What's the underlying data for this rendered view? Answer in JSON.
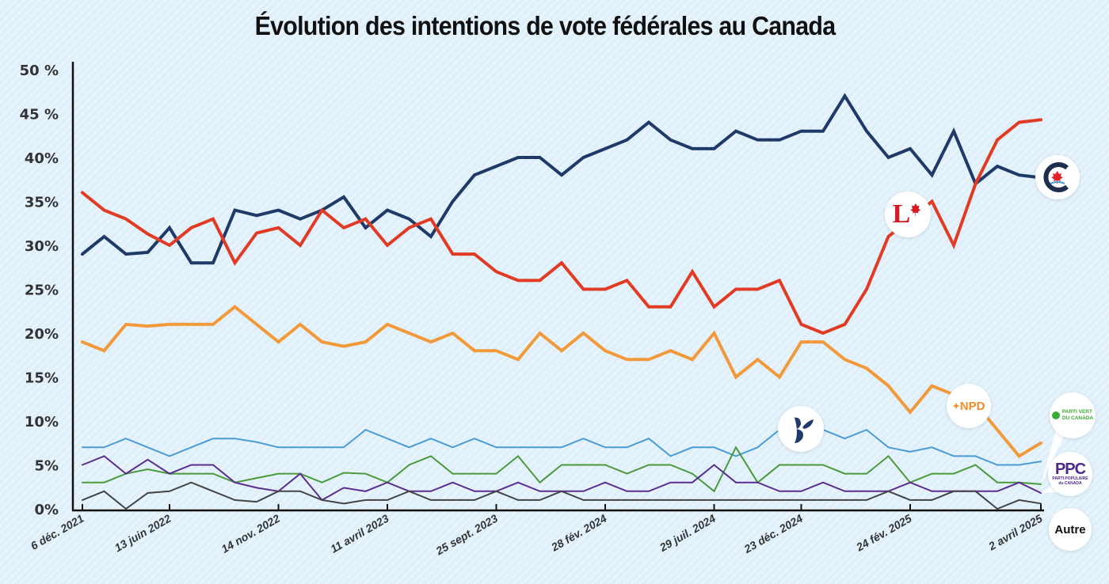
{
  "chart_data": {
    "type": "line",
    "title": "Évolution des intentions de vote fédérales au Canada",
    "xlabel": "",
    "ylabel": "",
    "ylim": [
      0,
      50
    ],
    "yticks": [
      {
        "value": 0,
        "label": "0%"
      },
      {
        "value": 5,
        "label": "5%"
      },
      {
        "value": 10,
        "label": "10%"
      },
      {
        "value": 15,
        "label": "15%"
      },
      {
        "value": 20,
        "label": "20%"
      },
      {
        "value": 25,
        "label": "25%"
      },
      {
        "value": 30,
        "label": "30%"
      },
      {
        "value": 35,
        "label": "35%"
      },
      {
        "value": 40,
        "label": "40%"
      },
      {
        "value": 45,
        "label": "45 %"
      },
      {
        "value": 50,
        "label": "50 %"
      }
    ],
    "xticks": [
      {
        "index": 0,
        "label": "6 déc. 2021"
      },
      {
        "index": 4,
        "label": "13 juin 2022"
      },
      {
        "index": 9,
        "label": "14 nov. 2022"
      },
      {
        "index": 14,
        "label": "11 avril 2023"
      },
      {
        "index": 19,
        "label": "25 sept. 2023"
      },
      {
        "index": 24,
        "label": "28 fév. 2024"
      },
      {
        "index": 29,
        "label": "29 juil. 2024"
      },
      {
        "index": 33,
        "label": "23 déc. 2024"
      },
      {
        "index": 38,
        "label": "24 fév. 2025"
      },
      {
        "index": 44,
        "label": "2 avril 2025"
      }
    ],
    "grid": false,
    "legend": "inline-badges-right",
    "n_points": 45,
    "series": [
      {
        "name": "Parti conservateur",
        "badge": "C",
        "color": "#1f3a68",
        "width": 4,
        "values": [
          29,
          31,
          29,
          29.2,
          32,
          28,
          28,
          34,
          33.4,
          34,
          33,
          34,
          35.5,
          32,
          34,
          33,
          31,
          35,
          38,
          39,
          40,
          40,
          38,
          40,
          41,
          42,
          44,
          42,
          41,
          41,
          43,
          42,
          42,
          43,
          43,
          47,
          43,
          40,
          41,
          38,
          43,
          37,
          39,
          38,
          37.7
        ]
      },
      {
        "name": "Parti libéral",
        "badge": "L",
        "color": "#e23b24",
        "width": 4,
        "values": [
          36,
          34,
          33,
          31.3,
          30,
          32,
          33,
          28,
          31.4,
          32,
          30,
          34,
          32,
          33,
          30,
          32,
          33,
          29,
          29,
          27,
          26,
          26,
          28,
          25,
          25,
          26,
          23,
          23,
          27,
          23,
          25,
          25,
          26,
          21,
          20,
          21,
          25,
          31,
          33,
          35,
          30,
          37,
          42,
          44,
          44.3
        ]
      },
      {
        "name": "NPD",
        "badge": "NPD",
        "color": "#f29a3a",
        "width": 4,
        "values": [
          19,
          18,
          21,
          20.8,
          21,
          21,
          21,
          23,
          21,
          19,
          21,
          19,
          18.5,
          19,
          21,
          20,
          19,
          20,
          18,
          18,
          17,
          20,
          18,
          20,
          18,
          17,
          17,
          18,
          17,
          20,
          15,
          17,
          15,
          19,
          19,
          17,
          16,
          14,
          11,
          14,
          13,
          12,
          9,
          6,
          7.5
        ]
      },
      {
        "name": "Bloc québécois",
        "badge": "B",
        "color": "#4a9bd3",
        "width": 2,
        "values": [
          7,
          7,
          8,
          7,
          6,
          7,
          8,
          8,
          7.6,
          7,
          7,
          7,
          7,
          9,
          8,
          7,
          8,
          7,
          8,
          7,
          7,
          7,
          7,
          8,
          7,
          7,
          8,
          6,
          7,
          7,
          6,
          7,
          9,
          10,
          9,
          8,
          9,
          7,
          6.5,
          7,
          6,
          6,
          5,
          5,
          5.4
        ]
      },
      {
        "name": "Parti vert du Canada",
        "badge": "PARTI VERT DU CANADA",
        "color": "#4a9a3a",
        "width": 2,
        "values": [
          3,
          3,
          4,
          4.5,
          4,
          4,
          4,
          3,
          3.5,
          4,
          4,
          3,
          4.1,
          4,
          3,
          5,
          6,
          4,
          4,
          4,
          6,
          3,
          5,
          5,
          5,
          4,
          5,
          5,
          4,
          2,
          7,
          3,
          5,
          5,
          5,
          4,
          4,
          6,
          3,
          4,
          4,
          5,
          3,
          3,
          2.8
        ]
      },
      {
        "name": "Parti populaire du Canada",
        "badge": "PPC",
        "color": "#5b2d8e",
        "width": 2,
        "values": [
          5,
          6,
          4,
          5.6,
          4,
          5,
          5,
          3,
          2.4,
          2,
          4,
          1,
          2.4,
          2,
          3,
          2,
          2,
          3,
          2,
          2,
          3,
          2,
          2,
          2,
          3,
          2,
          2,
          3,
          3,
          5,
          3,
          3,
          2,
          2,
          3,
          2,
          2,
          2,
          3,
          2,
          2,
          2,
          2,
          3,
          1.8
        ]
      },
      {
        "name": "Autre",
        "badge": "Autre",
        "color": "#444444",
        "width": 2,
        "values": [
          1,
          2,
          0,
          1.8,
          2,
          3,
          2,
          1,
          0.8,
          2,
          2,
          1,
          0.6,
          1,
          1,
          2,
          1,
          1,
          1,
          2,
          1,
          1,
          2,
          1,
          1,
          1,
          1,
          1,
          1,
          1,
          1,
          1,
          1,
          1,
          1,
          1,
          1,
          2,
          1,
          1,
          2,
          2,
          0,
          1,
          0.6
        ]
      }
    ]
  },
  "badges": {
    "npd_label": "NPD",
    "green_line1": "PARTI VERT",
    "green_line2": "DU CANADA",
    "ppc_label": "PPC",
    "ppc_sub1": "PARTI POPULAIRE",
    "ppc_sub2": "du CANADA",
    "other_label": "Autre",
    "liberal_letter": "L",
    "conservative_letter": "C"
  }
}
